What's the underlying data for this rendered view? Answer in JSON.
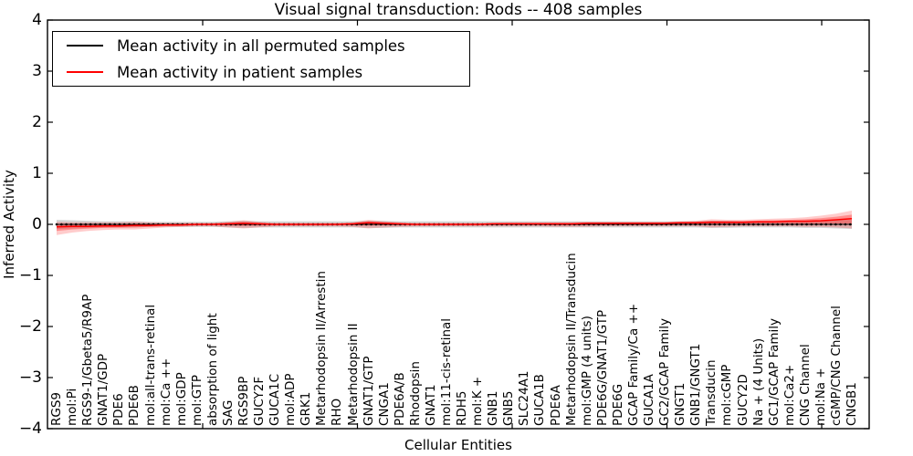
{
  "title": "Visual signal transduction: Rods -- 408 samples",
  "xlabel": "Cellular Entities",
  "ylabel": "Inferred Activity",
  "legend": {
    "items": [
      {
        "label": "Mean activity in all permuted samples",
        "color": "#000000"
      },
      {
        "label": "Mean activity in patient samples",
        "color": "#ff0000"
      }
    ]
  },
  "chart_data": {
    "type": "line",
    "title": "Visual signal transduction: Rods -- 408 samples",
    "xlabel": "Cellular Entities",
    "ylabel": "Inferred Activity",
    "ylim": [
      -4,
      4
    ],
    "ytick_values": [
      4,
      3,
      2,
      1,
      0,
      -1,
      -2,
      -3,
      -4
    ],
    "ytick_labels": [
      "4",
      "3",
      "2",
      "1",
      "0",
      "−1",
      "−2",
      "−3",
      "−4"
    ],
    "grid": false,
    "legend_position": "upper left",
    "band_colors": {
      "permuted": "rgba(0,0,0,0.16)",
      "patient_outer": "rgba(255,0,0,0.20)",
      "patient_inner": "rgba(255,0,0,0.30)"
    },
    "categories": [
      "RGS9",
      "mol:Pi",
      "RGS9-1/Gbeta5/R9AP",
      "GNAT1/GDP",
      "PDE6",
      "PDE6B",
      "mol:all-trans-retinal",
      "mol:Ca ++",
      "mol:GDP",
      "mol:GTP",
      "absorption of light",
      "SAG",
      "RGS9BP",
      "GUCY2F",
      "GUCA1C",
      "mol:ADP",
      "GRK1",
      "Metarhodopsin II/Arrestin",
      "RHO",
      "Metarhodopsin II",
      "GNAT1/GTP",
      "CNGA1",
      "PDE6A/B",
      "Rhodopsin",
      "GNAT1",
      "mol:11-cis-retinal",
      "RDH5",
      "mol:K +",
      "GNB1",
      "GNB5",
      "SLC24A1",
      "GUCA1B",
      "PDE6A",
      "Metarhodopsin II/Transducin",
      "mol:GMP (4 units)",
      "PDE6G/GNAT1/GTP",
      "PDE6G",
      "GCAP Family/Ca ++",
      "GUCA1A",
      "GC2/GCAP Family",
      "GNGT1",
      "GNB1/GNGT1",
      "Transducin",
      "mol:cGMP",
      "GUCY2D",
      "Na + (4 Units)",
      "GC1/GCAP Family",
      "mol:Ca2+",
      "CNG Channel",
      "mol:Na +",
      "cGMP/CNG Channel",
      "CNGB1"
    ],
    "series": [
      {
        "name": "Mean activity in all permuted samples",
        "color": "#000000",
        "values": [
          0,
          0,
          0,
          0,
          0,
          0,
          0,
          0,
          0,
          0,
          0,
          0,
          0,
          0,
          0,
          0,
          0,
          0,
          0,
          0,
          0,
          0,
          0,
          0,
          0,
          0,
          0,
          0,
          0,
          0,
          0,
          0,
          0,
          0,
          0,
          0,
          0,
          0,
          0,
          0,
          0,
          0,
          0,
          0,
          0,
          0,
          0,
          0,
          0,
          0,
          0,
          0
        ],
        "band_halfwidth": [
          0.09,
          0.08,
          0.07,
          0.06,
          0.06,
          0.06,
          0.05,
          0.05,
          0.05,
          0.05,
          0.05,
          0.06,
          0.07,
          0.06,
          0.06,
          0.06,
          0.06,
          0.06,
          0.06,
          0.06,
          0.07,
          0.07,
          0.06,
          0.06,
          0.06,
          0.06,
          0.06,
          0.06,
          0.06,
          0.06,
          0.06,
          0.06,
          0.06,
          0.06,
          0.06,
          0.06,
          0.06,
          0.06,
          0.06,
          0.06,
          0.06,
          0.06,
          0.07,
          0.07,
          0.06,
          0.06,
          0.06,
          0.06,
          0.07,
          0.07,
          0.08,
          0.09
        ]
      },
      {
        "name": "Mean activity in patient samples",
        "color": "#ff0000",
        "values": [
          -0.05,
          -0.04,
          -0.04,
          -0.03,
          -0.03,
          -0.02,
          -0.02,
          -0.01,
          -0.01,
          0,
          0,
          0.01,
          0.02,
          0.01,
          0,
          0,
          0,
          0,
          0,
          0.01,
          0.03,
          0.02,
          0.01,
          0,
          0,
          0,
          0,
          0,
          0.01,
          0.01,
          0.01,
          0.01,
          0.01,
          0.01,
          0.02,
          0.02,
          0.02,
          0.02,
          0.02,
          0.02,
          0.03,
          0.03,
          0.04,
          0.04,
          0.04,
          0.05,
          0.05,
          0.06,
          0.06,
          0.07,
          0.09,
          0.11
        ],
        "band_upper": [
          0.05,
          0.04,
          0.04,
          0.04,
          0.04,
          0.05,
          0.04,
          0.03,
          0.03,
          0.03,
          0.03,
          0.05,
          0.08,
          0.05,
          0.03,
          0.03,
          0.03,
          0.03,
          0.03,
          0.04,
          0.09,
          0.06,
          0.04,
          0.03,
          0.03,
          0.03,
          0.03,
          0.03,
          0.03,
          0.04,
          0.04,
          0.04,
          0.04,
          0.04,
          0.05,
          0.05,
          0.05,
          0.05,
          0.05,
          0.05,
          0.06,
          0.07,
          0.1,
          0.09,
          0.09,
          0.1,
          0.11,
          0.12,
          0.14,
          0.17,
          0.21,
          0.27
        ],
        "band_lower": [
          -0.21,
          -0.16,
          -0.13,
          -0.11,
          -0.1,
          -0.1,
          -0.08,
          -0.06,
          -0.05,
          -0.04,
          -0.04,
          -0.06,
          -0.08,
          -0.06,
          -0.04,
          -0.04,
          -0.04,
          -0.04,
          -0.04,
          -0.05,
          -0.08,
          -0.06,
          -0.05,
          -0.04,
          -0.04,
          -0.04,
          -0.04,
          -0.04,
          -0.04,
          -0.04,
          -0.04,
          -0.04,
          -0.05,
          -0.05,
          -0.05,
          -0.04,
          -0.04,
          -0.04,
          -0.04,
          -0.04,
          -0.04,
          -0.04,
          -0.06,
          -0.05,
          -0.04,
          -0.04,
          -0.04,
          -0.04,
          -0.05,
          -0.05,
          -0.06,
          -0.08
        ]
      }
    ]
  }
}
